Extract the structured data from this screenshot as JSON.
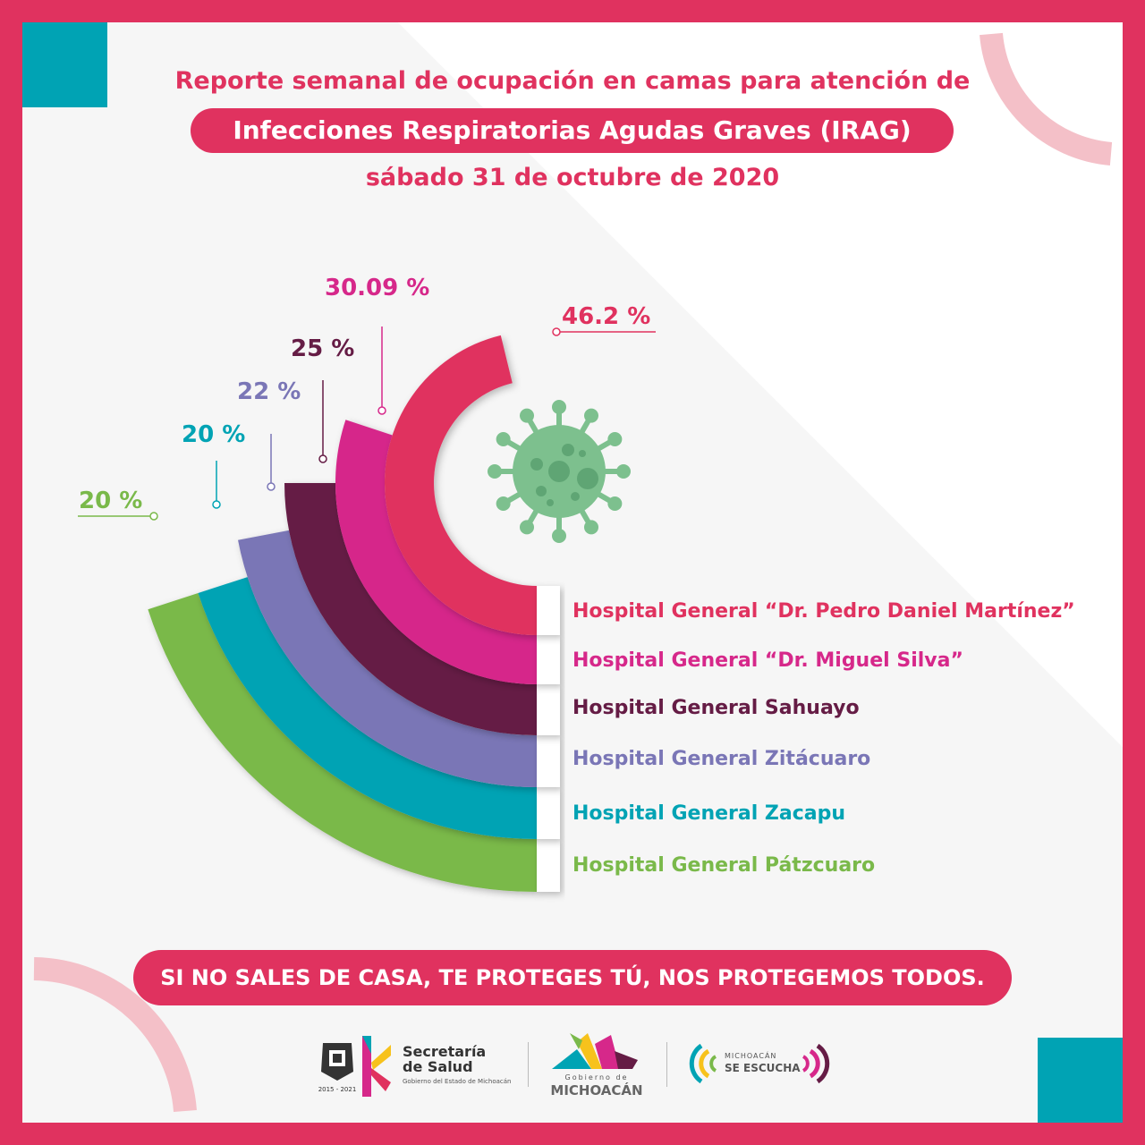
{
  "header": {
    "line1": "Reporte semanal de ocupación en camas para atención de",
    "line2": "Infecciones Respiratorias Agudas Graves (IRAG)",
    "line3": "sábado 31 de octubre de 2020"
  },
  "chart_data": {
    "type": "radial-bar",
    "full_scale_percent": 100,
    "categories": [
      "Hospital General “Dr. Pedro Daniel Martínez”",
      "Hospital General “Dr. Miguel Silva”",
      "Hospital General Sahuayo",
      "Hospital General Zitácuaro",
      "Hospital General Zacapu",
      "Hospital General Pátzcuaro"
    ],
    "values": [
      46.2,
      30.09,
      25,
      22,
      20,
      20
    ],
    "data_labels": [
      "46.2 %",
      "30.09 %",
      "25 %",
      "22 %",
      "20 %",
      "20 %"
    ],
    "colors": [
      "#e0325f",
      "#d6288a",
      "#651c45",
      "#7a76b6",
      "#00a3b4",
      "#7ab94a"
    ]
  },
  "footer": {
    "slogan": "SI NO SALES DE CASA, TE PROTEGES TÚ, NOS PROTEGEMOS TODOS.",
    "logos": {
      "seal_years": "2015 - 2021",
      "salud_title1": "Secretaría",
      "salud_title2": "de Salud",
      "salud_sub": "Gobierno del Estado de Michoacán",
      "gob_small": "Gobierno de",
      "gob_big": "MICHOACÁN",
      "escucha1": "MICHOACÁN",
      "escucha2": "SE ESCUCHA"
    }
  },
  "colors": {
    "brand": "#e0325f",
    "teal": "#00a3b4",
    "virus": "#7dc08e"
  }
}
